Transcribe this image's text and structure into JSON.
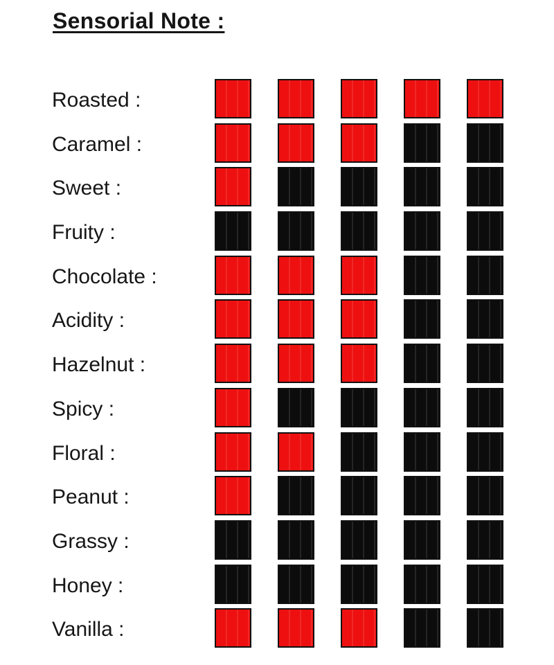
{
  "title": "Sensorial Note :",
  "scale": {
    "max": 5
  },
  "colors": {
    "filled_square": "#ee1010",
    "empty_square": "#0c0c0c",
    "square_border": "#111111",
    "text": "#161616",
    "background": "#ffffff"
  },
  "rows": [
    {
      "label": "Roasted :",
      "value": 5
    },
    {
      "label": "Caramel :",
      "value": 3
    },
    {
      "label": "Sweet :",
      "value": 1
    },
    {
      "label": "Fruity :",
      "value": 0
    },
    {
      "label": "Chocolate :",
      "value": 3
    },
    {
      "label": "Acidity :",
      "value": 3
    },
    {
      "label": "Hazelnut :",
      "value": 3
    },
    {
      "label": "Spicy :",
      "value": 1
    },
    {
      "label": "Floral :",
      "value": 2
    },
    {
      "label": "Peanut :",
      "value": 1
    },
    {
      "label": "Grassy :",
      "value": 0
    },
    {
      "label": "Honey :",
      "value": 0
    },
    {
      "label": "Vanilla :",
      "value": 3
    }
  ],
  "chart_data": {
    "type": "bar",
    "title": "Sensorial Note :",
    "categories": [
      "Roasted",
      "Caramel",
      "Sweet",
      "Fruity",
      "Chocolate",
      "Acidity",
      "Hazelnut",
      "Spicy",
      "Floral",
      "Peanut",
      "Grassy",
      "Honey",
      "Vanilla"
    ],
    "values": [
      5,
      3,
      1,
      0,
      3,
      3,
      3,
      1,
      2,
      1,
      0,
      0,
      3
    ],
    "xlabel": "",
    "ylabel": "rating (filled red squares out of 5)",
    "ylim": [
      0,
      5
    ],
    "legend_position": "none",
    "grid": false
  }
}
